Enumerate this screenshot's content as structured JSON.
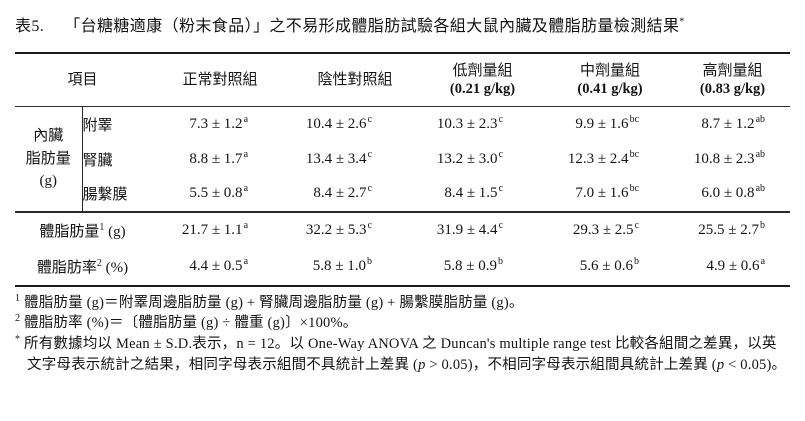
{
  "title": {
    "label": "表5.",
    "text": "「台糖糖適康（粉末食品）」之不易形成體脂肪試驗各組大鼠內臟及體脂肪量檢測結果",
    "marker": "*"
  },
  "table": {
    "item_header": "項目",
    "columns": [
      {
        "label": "正常對照組",
        "dose": ""
      },
      {
        "label": "陰性對照組",
        "dose": ""
      },
      {
        "label": "低劑量組",
        "dose": "(0.21 g/kg)"
      },
      {
        "label": "中劑量組",
        "dose": "(0.41 g/kg)"
      },
      {
        "label": "高劑量組",
        "dose": "(0.83 g/kg)"
      }
    ],
    "visceral_section": {
      "group_label_lines": [
        "內臟",
        "脂肪量",
        "(g)"
      ],
      "rows": [
        {
          "label": "附睪",
          "values": [
            {
              "v": "7.3 ± 1.2",
              "sup": "a"
            },
            {
              "v": "10.4 ± 2.6",
              "sup": "c"
            },
            {
              "v": "10.3 ± 2.3",
              "sup": "c"
            },
            {
              "v": "9.9 ± 1.6",
              "sup": "bc"
            },
            {
              "v": "8.7 ± 1.2",
              "sup": "ab"
            }
          ]
        },
        {
          "label": "腎臟",
          "values": [
            {
              "v": "8.8 ± 1.7",
              "sup": "a"
            },
            {
              "v": "13.4 ± 3.4",
              "sup": "c"
            },
            {
              "v": "13.2 ± 3.0",
              "sup": "c"
            },
            {
              "v": "12.3 ± 2.4",
              "sup": "bc"
            },
            {
              "v": "10.8 ± 2.3",
              "sup": "ab"
            }
          ]
        },
        {
          "label": "腸繫膜",
          "values": [
            {
              "v": "5.5 ± 0.8",
              "sup": "a"
            },
            {
              "v": "8.4 ± 2.7",
              "sup": "c"
            },
            {
              "v": "8.4 ± 1.5",
              "sup": "c"
            },
            {
              "v": "7.0 ± 1.6",
              "sup": "bc"
            },
            {
              "v": "6.0 ± 0.8",
              "sup": "ab"
            }
          ]
        }
      ]
    },
    "summary_rows": [
      {
        "label": "體脂肪量",
        "label_sup": "1",
        "unit": "(g)",
        "values": [
          {
            "v": "21.7 ± 1.1",
            "sup": "a"
          },
          {
            "v": "32.2 ± 5.3",
            "sup": "c"
          },
          {
            "v": "31.9 ± 4.4",
            "sup": "c"
          },
          {
            "v": "29.3 ± 2.5",
            "sup": "c"
          },
          {
            "v": "25.5 ± 2.7",
            "sup": "b"
          }
        ]
      },
      {
        "label": "體脂肪率",
        "label_sup": "2",
        "unit": "(%)",
        "values": [
          {
            "v": "4.4 ± 0.5",
            "sup": "a"
          },
          {
            "v": "5.8 ± 1.0",
            "sup": "b"
          },
          {
            "v": "5.8 ± 0.9",
            "sup": "b"
          },
          {
            "v": "5.6 ± 0.6",
            "sup": "b"
          },
          {
            "v": "4.9 ± 0.6",
            "sup": "a"
          }
        ]
      }
    ]
  },
  "footnotes": [
    {
      "marker": "1",
      "parts": [
        "體脂肪量 (g)＝附睪周邊脂肪量 (g) + 腎臟周邊脂肪量 (g) + 腸繫膜脂肪量 (g)。"
      ]
    },
    {
      "marker": "2",
      "parts": [
        "體脂肪率 (%)＝〔體脂肪量 (g) ÷ 體重 (g)〕×100%。"
      ]
    },
    {
      "marker": "*",
      "parts": [
        "所有數據均以 Mean ± S.D.表示，n = 12。以 One-Way ANOVA 之 Duncan's multiple range test 比較各組間之差異，以英文字母表示統計之結果，相同字母表示組間不具統計上差異 (",
        {
          "i": "p"
        },
        " > 0.05)，不相同字母表示組間具統計上差異 (",
        {
          "i": "p"
        },
        " < 0.05)。"
      ]
    }
  ]
}
